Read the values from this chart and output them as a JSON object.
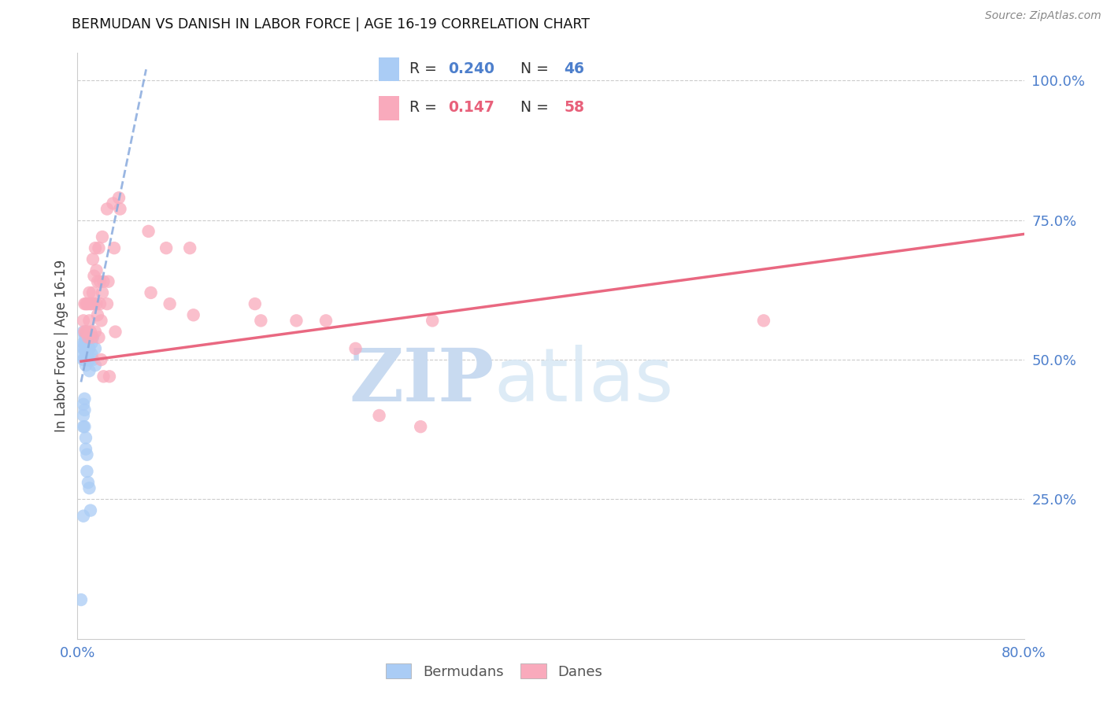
{
  "title": "BERMUDAN VS DANISH IN LABOR FORCE | AGE 16-19 CORRELATION CHART",
  "source": "Source: ZipAtlas.com",
  "ylabel": "In Labor Force | Age 16-19",
  "xlim": [
    0.0,
    0.8
  ],
  "ylim": [
    0.0,
    1.05
  ],
  "xticks": [
    0.0,
    0.1,
    0.2,
    0.3,
    0.4,
    0.5,
    0.6,
    0.7,
    0.8
  ],
  "yticks_right": [
    0.25,
    0.5,
    0.75,
    1.0
  ],
  "ytick_labels_right": [
    "25.0%",
    "50.0%",
    "75.0%",
    "100.0%"
  ],
  "blue_scatter_color": "#aaccf5",
  "pink_scatter_color": "#f9aabc",
  "blue_line_color": "#88aadd",
  "pink_line_color": "#e8607a",
  "axis_label_color": "#4d7fcc",
  "tick_color": "#4d7fcc",
  "grid_color": "#cccccc",
  "blue_x": [
    0.005,
    0.005,
    0.005,
    0.005,
    0.005,
    0.006,
    0.006,
    0.006,
    0.006,
    0.007,
    0.007,
    0.007,
    0.007,
    0.007,
    0.008,
    0.008,
    0.008,
    0.008,
    0.009,
    0.009,
    0.009,
    0.01,
    0.01,
    0.01,
    0.01,
    0.012,
    0.012,
    0.013,
    0.013,
    0.015,
    0.015,
    0.005,
    0.005,
    0.005,
    0.006,
    0.006,
    0.006,
    0.007,
    0.007,
    0.008,
    0.008,
    0.009,
    0.01,
    0.011,
    0.005,
    0.003
  ],
  "blue_y": [
    0.55,
    0.53,
    0.52,
    0.51,
    0.5,
    0.54,
    0.53,
    0.52,
    0.5,
    0.54,
    0.53,
    0.52,
    0.51,
    0.49,
    0.55,
    0.53,
    0.52,
    0.5,
    0.54,
    0.52,
    0.5,
    0.54,
    0.52,
    0.5,
    0.48,
    0.53,
    0.51,
    0.54,
    0.5,
    0.52,
    0.49,
    0.42,
    0.4,
    0.38,
    0.43,
    0.41,
    0.38,
    0.36,
    0.34,
    0.33,
    0.3,
    0.28,
    0.27,
    0.23,
    0.22,
    0.07
  ],
  "pink_x": [
    0.005,
    0.006,
    0.006,
    0.007,
    0.007,
    0.008,
    0.008,
    0.009,
    0.009,
    0.01,
    0.01,
    0.011,
    0.011,
    0.012,
    0.012,
    0.013,
    0.013,
    0.014,
    0.014,
    0.015,
    0.015,
    0.016,
    0.016,
    0.017,
    0.017,
    0.018,
    0.018,
    0.019,
    0.019,
    0.02,
    0.02,
    0.021,
    0.021,
    0.022,
    0.022,
    0.025,
    0.025,
    0.026,
    0.027,
    0.03,
    0.031,
    0.032,
    0.035,
    0.036,
    0.06,
    0.062,
    0.075,
    0.078,
    0.095,
    0.098,
    0.15,
    0.155,
    0.185,
    0.21,
    0.235,
    0.255,
    0.29,
    0.58,
    0.3
  ],
  "pink_y": [
    0.57,
    0.6,
    0.55,
    0.6,
    0.55,
    0.6,
    0.55,
    0.6,
    0.54,
    0.62,
    0.57,
    0.6,
    0.55,
    0.6,
    0.54,
    0.68,
    0.62,
    0.65,
    0.6,
    0.55,
    0.7,
    0.66,
    0.6,
    0.64,
    0.58,
    0.54,
    0.7,
    0.64,
    0.6,
    0.57,
    0.5,
    0.72,
    0.62,
    0.64,
    0.47,
    0.77,
    0.6,
    0.64,
    0.47,
    0.78,
    0.7,
    0.55,
    0.79,
    0.77,
    0.73,
    0.62,
    0.7,
    0.6,
    0.7,
    0.58,
    0.6,
    0.57,
    0.57,
    0.57,
    0.52,
    0.4,
    0.38,
    0.57,
    0.57
  ],
  "blue_trend_x": [
    0.003,
    0.1
  ],
  "blue_trend_y_intercept": 0.46,
  "blue_trend_slope": 1.05,
  "pink_trend_x": [
    0.004,
    0.8
  ],
  "pink_trend_y_start": 0.5,
  "pink_trend_y_end": 0.73
}
